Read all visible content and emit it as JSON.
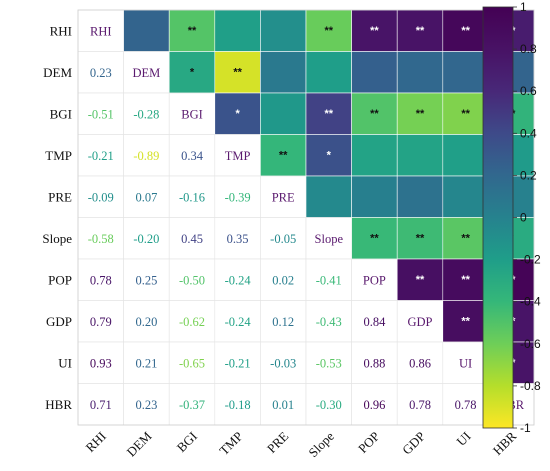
{
  "chart_data": {
    "type": "heatmap",
    "title": "",
    "variables": [
      "RHI",
      "DEM",
      "BGI",
      "TMP",
      "PRE",
      "Slope",
      "POP",
      "GDP",
      "UI",
      "HBR"
    ],
    "matrix": [
      [
        1.0,
        0.23,
        -0.51,
        -0.21,
        -0.09,
        -0.58,
        0.78,
        0.79,
        0.93,
        0.71
      ],
      [
        0.23,
        1.0,
        -0.28,
        -0.89,
        0.07,
        -0.2,
        0.25,
        0.2,
        0.21,
        0.23
      ],
      [
        -0.51,
        -0.28,
        1.0,
        0.34,
        -0.16,
        0.45,
        -0.5,
        -0.62,
        -0.65,
        -0.37
      ],
      [
        -0.21,
        -0.89,
        0.34,
        1.0,
        -0.39,
        0.35,
        -0.24,
        -0.24,
        -0.21,
        -0.18
      ],
      [
        -0.09,
        0.07,
        -0.16,
        -0.39,
        1.0,
        -0.05,
        0.02,
        0.12,
        -0.03,
        0.01
      ],
      [
        -0.58,
        -0.2,
        0.45,
        0.35,
        -0.05,
        1.0,
        -0.41,
        -0.43,
        -0.53,
        -0.3
      ],
      [
        0.78,
        0.25,
        -0.5,
        -0.24,
        0.02,
        -0.41,
        1.0,
        0.84,
        0.88,
        0.96
      ],
      [
        0.79,
        0.2,
        -0.62,
        -0.24,
        0.12,
        -0.43,
        0.84,
        1.0,
        0.86,
        0.78
      ],
      [
        0.93,
        0.21,
        -0.65,
        -0.21,
        -0.03,
        -0.53,
        0.88,
        0.86,
        1.0,
        0.78
      ],
      [
        0.71,
        0.23,
        -0.37,
        -0.18,
        0.01,
        -0.3,
        0.96,
        0.78,
        0.78,
        1.0
      ]
    ],
    "significance": [
      [
        "",
        "",
        "**",
        "",
        "",
        "**",
        "**",
        "**",
        "**",
        "**"
      ],
      [
        "",
        "",
        "*",
        "**",
        "",
        "",
        "",
        "",
        "",
        ""
      ],
      [
        "",
        "",
        "",
        "*",
        "",
        "**",
        "**",
        "**",
        "**",
        "**"
      ],
      [
        "",
        "",
        "",
        "",
        "**",
        "*",
        "",
        "",
        "",
        ""
      ],
      [
        "",
        "",
        "",
        "",
        "",
        "",
        "",
        "",
        "",
        ""
      ],
      [
        "",
        "",
        "",
        "",
        "",
        "",
        "**",
        "**",
        "**",
        "*"
      ],
      [
        "",
        "",
        "",
        "",
        "",
        "",
        "",
        "**",
        "**",
        "**"
      ],
      [
        "",
        "",
        "",
        "",
        "",
        "",
        "",
        "",
        "**",
        "**"
      ],
      [
        "",
        "",
        "",
        "",
        "",
        "",
        "",
        "",
        "",
        "**"
      ],
      [
        "",
        "",
        "",
        "",
        "",
        "",
        "",
        "",
        "",
        ""
      ]
    ],
    "lower_triangle": "values",
    "upper_triangle": "colored cells with significance stars",
    "diagonal": "variable names",
    "colorbar": {
      "range": [
        -1,
        1
      ],
      "ticks": [
        "1",
        "0.8",
        "0.6",
        "0.4",
        "0.2",
        "0",
        "-0.2",
        "-0.4",
        "-0.6",
        "-0.8",
        "-1"
      ],
      "colormap": "viridis",
      "placement": "right"
    },
    "grid": true
  }
}
